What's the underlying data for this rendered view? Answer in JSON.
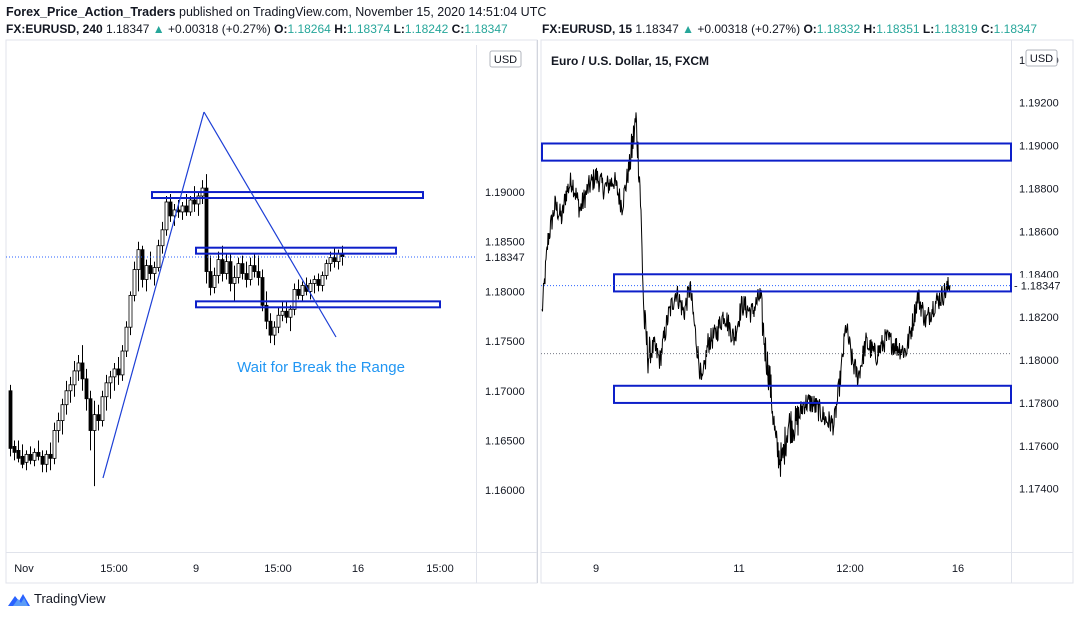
{
  "header": {
    "author": "Forex_Price_Action_Traders",
    "published_text": "published on TradingView.com, November 15, 2020 14:51:04 UTC"
  },
  "legend_left": {
    "symbol": "FX:EURUSD, 240",
    "price": "1.18347",
    "arrow": "▲",
    "change": "+0.00318 (+0.27%)",
    "o_label": "O:",
    "o_val": "1.18264",
    "h_label": "H:",
    "h_val": "1.18374",
    "l_label": "L:",
    "l_val": "1.18242",
    "c_label": "C:",
    "c_val": "1.18347"
  },
  "legend_right": {
    "symbol": "FX:EURUSD, 15",
    "price": "1.18347",
    "arrow": "▲",
    "change": "+0.00318 (+0.27%)",
    "o_label": "O:",
    "o_val": "1.18332",
    "h_label": "H:",
    "h_val": "1.18351",
    "l_label": "L:",
    "l_val": "1.18319",
    "c_label": "C:",
    "c_val": "1.18347"
  },
  "colors": {
    "rectangle": "#0d1fc9",
    "trendline": "#1d3fd6",
    "annotation": "#2196f3",
    "price_line": "#2962ff",
    "candle": "#000000",
    "axis_line": "#e0e3eb"
  },
  "footer": {
    "brand": "TradingView",
    "logo_icon": "tradingview-logo-icon"
  },
  "chart_data": [
    {
      "type": "candlestick",
      "symbol": "FX:EURUSD",
      "timeframe": "240",
      "currency": "USD",
      "ylim": [
        1.1578,
        1.2048
      ],
      "y_ticks": [
        "1.16000",
        "1.16500",
        "1.17000",
        "1.17500",
        "1.18000",
        "1.18500",
        "1.19000"
      ],
      "last_price": "1.18347",
      "x_ticks": [
        "Nov",
        "15:00",
        "9",
        "15:00",
        "16",
        "15:00"
      ],
      "annotations": [
        "Wait for Break the Range"
      ],
      "ranges": [
        {
          "from": 1.1894,
          "to": 1.19
        },
        {
          "from": 1.1838,
          "to": 1.1844
        },
        {
          "from": 1.1784,
          "to": 1.179
        }
      ]
    },
    {
      "type": "line",
      "symbol": "FX:EURUSD",
      "timeframe": "15",
      "name": "Euro / U.S. Dollar, 15, FXCM",
      "currency": "USD",
      "ylim": [
        1.1724,
        1.1946
      ],
      "y_ticks": [
        "1.17400",
        "1.17600",
        "1.17800",
        "1.18000",
        "1.18200",
        "1.18400",
        "1.18600",
        "1.18800",
        "1.19000",
        "1.19200",
        "1.19400"
      ],
      "last_price": "1.18347",
      "x_ticks": [
        "9",
        "11",
        "12:00",
        "16"
      ],
      "ranges": [
        {
          "from": 1.1893,
          "to": 1.1901
        },
        {
          "from": 1.1832,
          "to": 1.184
        },
        {
          "from": 1.178,
          "to": 1.1788
        }
      ]
    }
  ]
}
